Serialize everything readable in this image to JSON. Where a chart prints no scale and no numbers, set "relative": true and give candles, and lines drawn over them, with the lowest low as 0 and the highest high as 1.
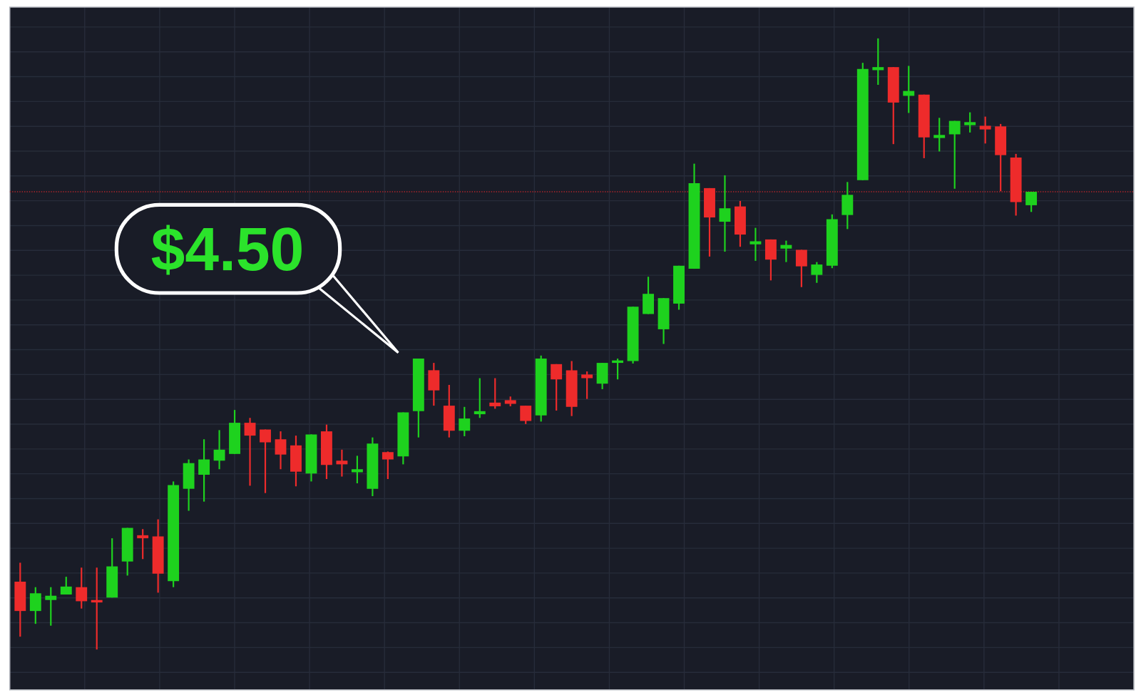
{
  "chart_data": {
    "type": "candlestick",
    "relative": true,
    "grid": true,
    "categories": [
      null,
      null,
      null,
      null,
      null,
      null,
      null,
      null,
      null,
      null,
      null,
      null,
      null,
      null,
      null,
      null,
      null,
      null,
      null,
      null,
      null,
      null,
      null,
      null,
      null,
      null,
      null,
      null,
      null,
      null,
      null,
      null,
      null,
      null,
      null,
      null,
      null,
      null,
      null,
      null,
      null,
      null,
      null,
      null,
      null,
      null,
      null,
      null,
      null,
      null,
      null,
      null,
      null,
      null,
      null,
      null,
      null,
      null,
      null,
      null,
      null,
      null,
      null,
      null,
      null,
      null,
      null
    ],
    "ohlc": [
      [
        0.111,
        0.142,
        0.021,
        0.063
      ],
      [
        0.063,
        0.102,
        0.042,
        0.092
      ],
      [
        0.081,
        0.102,
        0.039,
        0.088
      ],
      [
        0.09,
        0.119,
        0.09,
        0.103
      ],
      [
        0.102,
        0.134,
        0.067,
        0.079
      ],
      [
        0.081,
        0.134,
        0,
        0.077
      ],
      [
        0.085,
        0.182,
        0.085,
        0.136
      ],
      [
        0.144,
        0.199,
        0.121,
        0.199
      ],
      [
        0.187,
        0.197,
        0.148,
        0.182
      ],
      [
        0.185,
        0.213,
        0.093,
        0.124
      ],
      [
        0.112,
        0.275,
        0.102,
        0.269
      ],
      [
        0.263,
        0.311,
        0.227,
        0.305
      ],
      [
        0.286,
        0.344,
        0.242,
        0.311
      ],
      [
        0.309,
        0.359,
        0.295,
        0.327
      ],
      [
        0.32,
        0.392,
        0.32,
        0.371
      ],
      [
        0.371,
        0.379,
        0.268,
        0.35
      ],
      [
        0.36,
        0.36,
        0.256,
        0.339
      ],
      [
        0.344,
        0.357,
        0.295,
        0.319
      ],
      [
        0.334,
        0.35,
        0.267,
        0.291
      ],
      [
        0.288,
        0.352,
        0.275,
        0.352
      ],
      [
        0.357,
        0.368,
        0.279,
        0.302
      ],
      [
        0.309,
        0.327,
        0.283,
        0.303
      ],
      [
        0.29,
        0.317,
        0.272,
        0.295
      ],
      [
        0.263,
        0.347,
        0.251,
        0.337
      ],
      [
        0.323,
        0.324,
        0.279,
        0.311
      ],
      [
        0.316,
        0.388,
        0.303,
        0.388
      ],
      [
        0.39,
        0.476,
        0.347,
        0.476
      ],
      [
        0.457,
        0.469,
        0.399,
        0.424
      ],
      [
        0.399,
        0.433,
        0.347,
        0.358
      ],
      [
        0.358,
        0.397,
        0.349,
        0.378
      ],
      [
        0.385,
        0.444,
        0.379,
        0.39
      ],
      [
        0.404,
        0.444,
        0.394,
        0.398
      ],
      [
        0.408,
        0.414,
        0.398,
        0.402
      ],
      [
        0.399,
        0.399,
        0.369,
        0.374
      ],
      [
        0.383,
        0.481,
        0.373,
        0.476
      ],
      [
        0.467,
        0.467,
        0.391,
        0.442
      ],
      [
        0.457,
        0.472,
        0.382,
        0.397
      ],
      [
        0.45,
        0.455,
        0.41,
        0.444
      ],
      [
        0.435,
        0.469,
        0.426,
        0.469
      ],
      [
        0.469,
        0.476,
        0.442,
        0.473
      ],
      [
        0.472,
        0.561,
        0.468,
        0.561
      ],
      [
        0.549,
        0.61,
        0.549,
        0.582
      ],
      [
        0.524,
        0.575,
        0.5,
        0.575
      ],
      [
        0.566,
        0.628,
        0.556,
        0.628
      ],
      [
        0.623,
        0.795,
        0.623,
        0.763
      ],
      [
        0.755,
        0.755,
        0.643,
        0.707
      ],
      [
        0.7,
        0.776,
        0.651,
        0.722
      ],
      [
        0.725,
        0.734,
        0.659,
        0.679
      ],
      [
        0.663,
        0.69,
        0.636,
        0.668
      ],
      [
        0.671,
        0.671,
        0.604,
        0.638
      ],
      [
        0.656,
        0.669,
        0.634,
        0.662
      ],
      [
        0.654,
        0.654,
        0.593,
        0.627
      ],
      [
        0.613,
        0.634,
        0.6,
        0.63
      ],
      [
        0.628,
        0.712,
        0.624,
        0.704
      ],
      [
        0.711,
        0.765,
        0.688,
        0.744
      ],
      [
        0.768,
        0.96,
        0.768,
        0.95
      ],
      [
        0.948,
        1,
        0.924,
        0.953
      ],
      [
        0.953,
        0.953,
        0.827,
        0.895
      ],
      [
        0.906,
        0.955,
        0.878,
        0.914
      ],
      [
        0.908,
        0.908,
        0.804,
        0.838
      ],
      [
        0.837,
        0.87,
        0.815,
        0.842
      ],
      [
        0.843,
        0.865,
        0.754,
        0.865
      ],
      [
        0.858,
        0.879,
        0.846,
        0.863
      ],
      [
        0.857,
        0.872,
        0.828,
        0.851
      ],
      [
        0.856,
        0.86,
        0.75,
        0.809
      ],
      [
        0.805,
        0.811,
        0.71,
        0.732
      ],
      [
        0.727,
        0.749,
        0.716,
        0.749
      ]
    ],
    "colors": [
      "#ee2b2b",
      "#1ed21e",
      "#1ed21e",
      "#1ed21e",
      "#ee2b2b",
      "#ee2b2b",
      "#1ed21e",
      "#1ed21e",
      "#ee2b2b",
      "#ee2b2b",
      "#1ed21e",
      "#1ed21e",
      "#1ed21e",
      "#1ed21e",
      "#1ed21e",
      "#ee2b2b",
      "#ee2b2b",
      "#ee2b2b",
      "#ee2b2b",
      "#1ed21e",
      "#ee2b2b",
      "#ee2b2b",
      "#1ed21e",
      "#1ed21e",
      "#ee2b2b",
      "#1ed21e",
      "#1ed21e",
      "#ee2b2b",
      "#ee2b2b",
      "#1ed21e",
      "#1ed21e",
      "#ee2b2b",
      "#ee2b2b",
      "#ee2b2b",
      "#1ed21e",
      "#ee2b2b",
      "#ee2b2b",
      "#ee2b2b",
      "#1ed21e",
      "#1ed21e",
      "#1ed21e",
      "#1ed21e",
      "#1ed21e",
      "#1ed21e",
      "#1ed21e",
      "#ee2b2b",
      "#1ed21e",
      "#ee2b2b",
      "#1ed21e",
      "#ee2b2b",
      "#1ed21e",
      "#ee2b2b",
      "#1ed21e",
      "#1ed21e",
      "#1ed21e",
      "#1ed21e",
      "#1ed21e",
      "#ee2b2b",
      "#1ed21e",
      "#ee2b2b",
      "#1ed21e",
      "#1ed21e",
      "#1ed21e",
      "#ee2b2b",
      "#ee2b2b",
      "#ee2b2b",
      "#1ed21e"
    ],
    "ref_lines": [
      {
        "axis": "y",
        "value": 0.749,
        "color": "#b3262b",
        "line_style": "dotted"
      }
    ],
    "annotations": [
      "$4.50"
    ]
  }
}
